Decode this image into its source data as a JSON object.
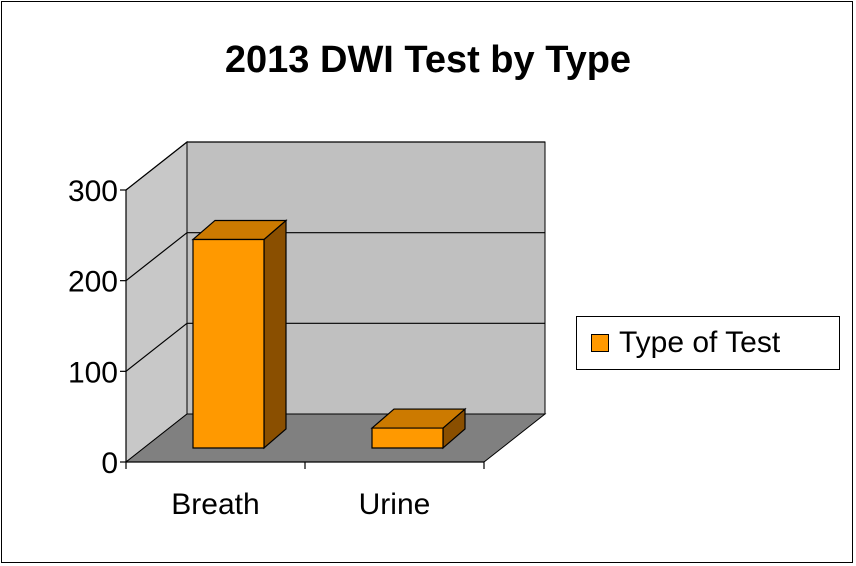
{
  "colors": {
    "bar_front": "#FF9900",
    "bar_top": "#CC7A00",
    "bar_side": "#8A4F00",
    "back_wall": "#C0C0C0",
    "side_wall": "#C8C8C8",
    "floor": "#808080"
  },
  "chart_data": {
    "type": "bar",
    "title": "2013 DWI Test by Type",
    "categories": [
      "Breath",
      "Urine"
    ],
    "series": [
      {
        "name": "Type of Test",
        "values": [
          230,
          22
        ]
      }
    ],
    "yticks": [
      "0",
      "100",
      "200",
      "300"
    ],
    "ylim": [
      0,
      300
    ],
    "grid": true,
    "legend_position": "right",
    "three_d": true
  }
}
